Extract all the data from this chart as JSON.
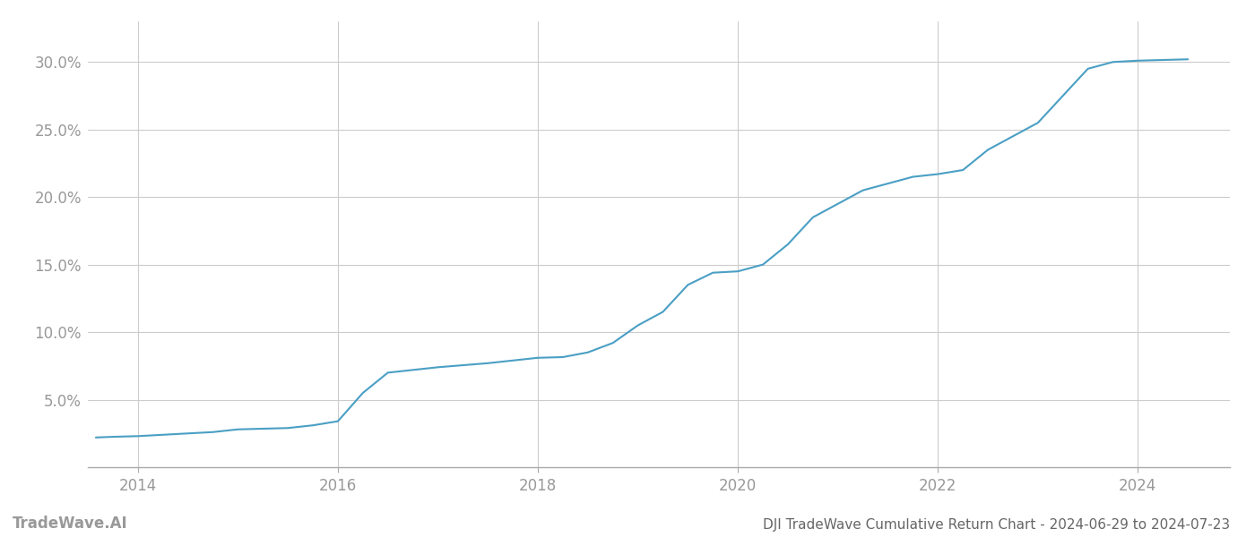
{
  "title": "DJI TradeWave Cumulative Return Chart - 2024-06-29 to 2024-07-23",
  "watermark": "TradeWave.AI",
  "line_color": "#4a9fc4",
  "line_width": 1.5,
  "background_color": "#ffffff",
  "grid_color": "#cccccc",
  "x_years": [
    2013.58,
    2013.75,
    2014.0,
    2014.25,
    2014.5,
    2014.75,
    2015.0,
    2015.25,
    2015.5,
    2015.75,
    2016.0,
    2016.25,
    2016.5,
    2016.75,
    2017.0,
    2017.25,
    2017.5,
    2017.75,
    2018.0,
    2018.25,
    2018.5,
    2018.75,
    2019.0,
    2019.25,
    2019.5,
    2019.75,
    2020.0,
    2020.25,
    2020.5,
    2020.75,
    2021.0,
    2021.25,
    2021.5,
    2021.75,
    2022.0,
    2022.25,
    2022.5,
    2022.75,
    2023.0,
    2023.25,
    2023.5,
    2023.75,
    2024.0,
    2024.25,
    2024.5
  ],
  "y_values": [
    2.2,
    2.25,
    2.3,
    2.4,
    2.5,
    2.6,
    2.8,
    2.85,
    2.9,
    3.1,
    3.4,
    5.5,
    7.0,
    7.2,
    7.4,
    7.55,
    7.7,
    7.9,
    8.1,
    8.15,
    8.5,
    9.2,
    10.5,
    11.5,
    13.5,
    14.4,
    14.5,
    15.0,
    16.5,
    18.5,
    19.5,
    20.5,
    21.0,
    21.5,
    21.7,
    22.0,
    23.5,
    24.5,
    25.5,
    27.5,
    29.5,
    30.0,
    30.1,
    30.15,
    30.2
  ],
  "xlim": [
    2013.5,
    2024.92
  ],
  "ylim": [
    0,
    33
  ],
  "xticks": [
    2014,
    2016,
    2018,
    2020,
    2022,
    2024
  ],
  "yticks": [
    5.0,
    10.0,
    15.0,
    20.0,
    25.0,
    30.0
  ],
  "tick_label_color": "#999999",
  "tick_label_fontsize": 12,
  "title_fontsize": 11,
  "title_color": "#666666",
  "watermark_fontsize": 12,
  "watermark_color": "#999999"
}
